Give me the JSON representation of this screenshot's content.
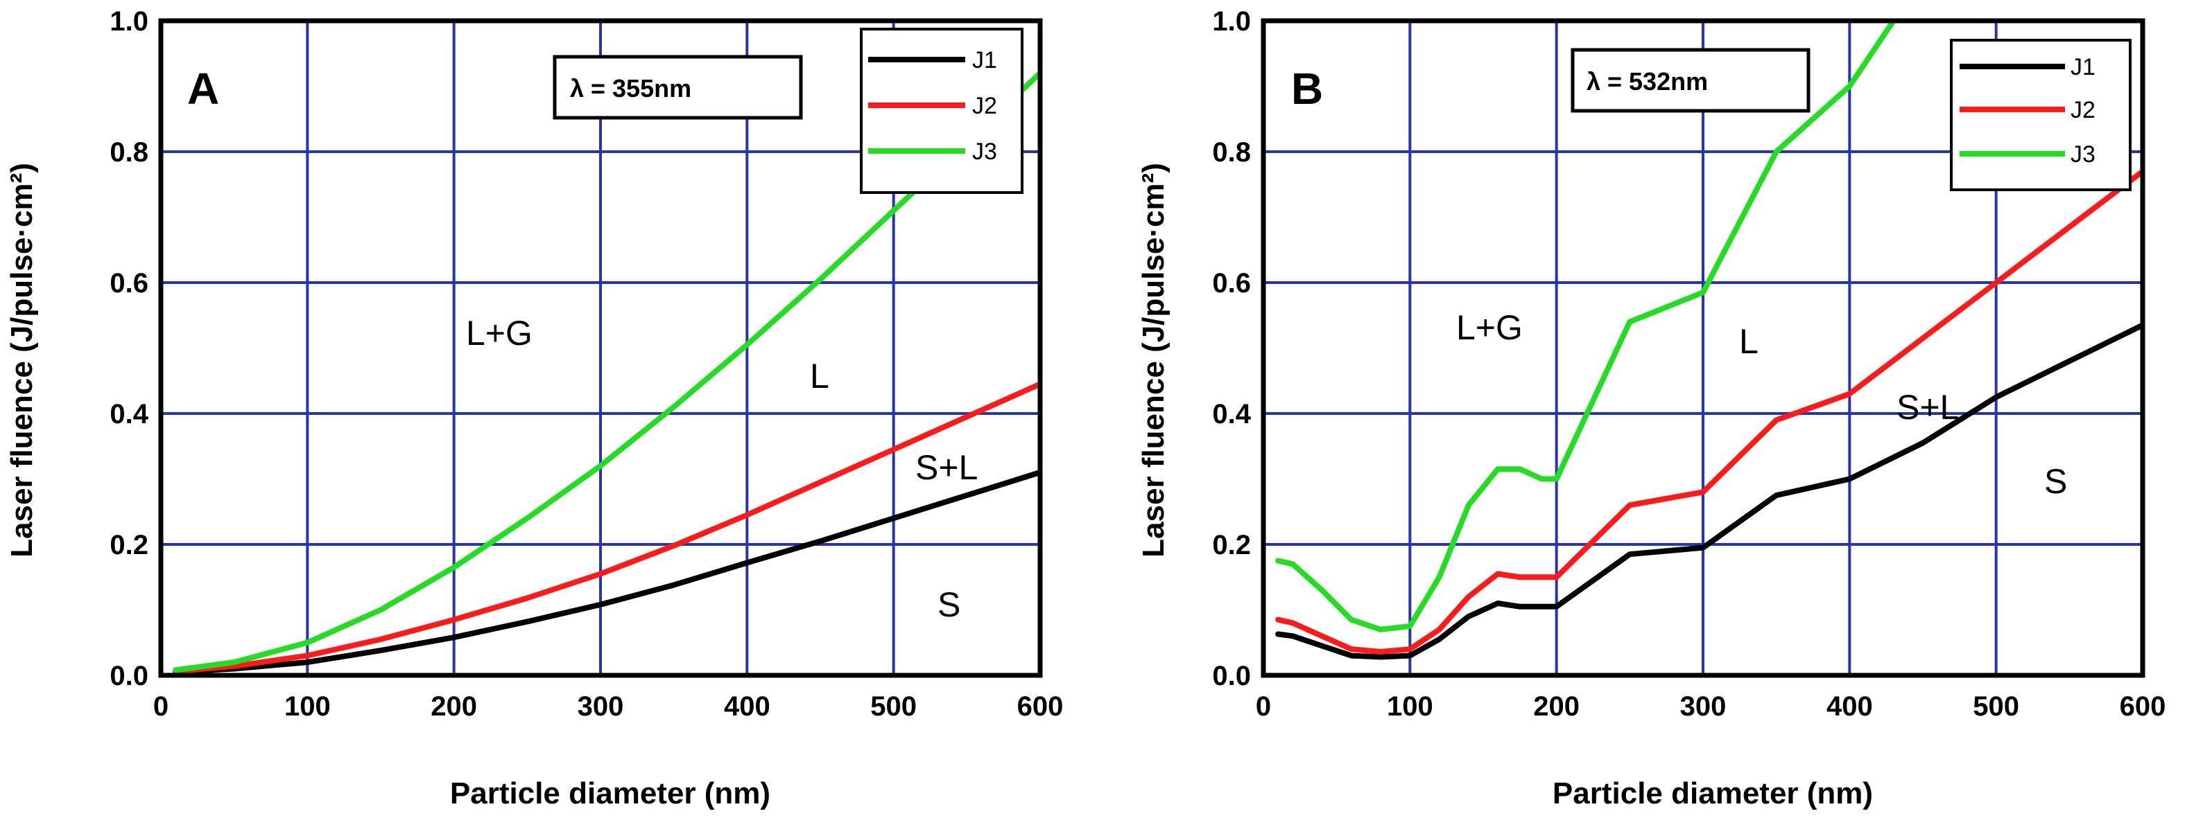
{
  "colors": {
    "grid": "#2633b8",
    "J1": "#000000",
    "J2": "#ff1a1a",
    "J3": "#22dd22"
  },
  "chart_data": [
    {
      "type": "line",
      "panel": "A",
      "wavelength_label": "= 355nm",
      "wavelength_symbol": "λ",
      "xlabel": "Particle diameter (nm)",
      "ylabel": "Laser fluence (J/pulse·cm²)",
      "xlim": [
        0,
        600
      ],
      "ylim": [
        0,
        1.0
      ],
      "xticks": [
        0,
        100,
        200,
        300,
        400,
        500,
        600
      ],
      "yticks": [
        0.0,
        0.2,
        0.4,
        0.6,
        0.8,
        1.0
      ],
      "ytick_labels": [
        "0.0",
        "0.2",
        "0.4",
        "0.6",
        "0.8",
        "1.0"
      ],
      "grid": true,
      "legend": "top-right",
      "region_labels": [
        "L+G",
        "L",
        "S+L",
        "S"
      ],
      "series": [
        {
          "name": "J1",
          "x": [
            10,
            50,
            100,
            150,
            200,
            250,
            300,
            350,
            400,
            450,
            500,
            550,
            600
          ],
          "y": [
            0.005,
            0.01,
            0.02,
            0.038,
            0.058,
            0.082,
            0.108,
            0.138,
            0.172,
            0.205,
            0.24,
            0.275,
            0.31
          ]
        },
        {
          "name": "J2",
          "x": [
            10,
            50,
            100,
            150,
            200,
            250,
            300,
            350,
            400,
            450,
            500,
            550,
            600
          ],
          "y": [
            0.006,
            0.014,
            0.03,
            0.055,
            0.085,
            0.118,
            0.155,
            0.198,
            0.245,
            0.295,
            0.345,
            0.395,
            0.445
          ]
        },
        {
          "name": "J3",
          "x": [
            10,
            50,
            100,
            150,
            200,
            250,
            300,
            350,
            400,
            450,
            500,
            550,
            600
          ],
          "y": [
            0.008,
            0.02,
            0.05,
            0.1,
            0.165,
            0.24,
            0.32,
            0.41,
            0.505,
            0.605,
            0.71,
            0.815,
            0.92
          ]
        }
      ]
    },
    {
      "type": "line",
      "panel": "B",
      "wavelength_label": "= 532nm",
      "wavelength_symbol": "λ",
      "xlabel": "Particle diameter (nm)",
      "ylabel": "Laser fluence (J/pulse·cm²)",
      "xlim": [
        0,
        600
      ],
      "ylim": [
        0,
        1.0
      ],
      "xticks": [
        0,
        100,
        200,
        300,
        400,
        500,
        600
      ],
      "yticks": [
        0.0,
        0.2,
        0.4,
        0.6,
        0.8,
        1.0
      ],
      "ytick_labels": [
        "0.0",
        "0.2",
        "0.4",
        "0.6",
        "0.8",
        "1.0"
      ],
      "grid": true,
      "legend": "top-right",
      "region_labels": [
        "L+G",
        "L",
        "S+L",
        "S"
      ],
      "series": [
        {
          "name": "J1",
          "x": [
            10,
            20,
            40,
            60,
            80,
            100,
            120,
            140,
            160,
            175,
            200,
            250,
            300,
            350,
            400,
            450,
            500,
            550,
            600
          ],
          "y": [
            0.063,
            0.06,
            0.045,
            0.03,
            0.028,
            0.03,
            0.055,
            0.09,
            0.11,
            0.105,
            0.105,
            0.185,
            0.195,
            0.275,
            0.3,
            0.355,
            0.425,
            0.48,
            0.535
          ]
        },
        {
          "name": "J2",
          "x": [
            10,
            20,
            40,
            60,
            80,
            100,
            120,
            140,
            160,
            175,
            200,
            250,
            300,
            350,
            400,
            450,
            500,
            550,
            600
          ],
          "y": [
            0.085,
            0.08,
            0.06,
            0.04,
            0.036,
            0.04,
            0.07,
            0.12,
            0.155,
            0.15,
            0.15,
            0.26,
            0.28,
            0.39,
            0.43,
            0.515,
            0.6,
            0.685,
            0.77
          ]
        },
        {
          "name": "J3",
          "x": [
            10,
            20,
            40,
            60,
            80,
            100,
            120,
            140,
            160,
            175,
            190,
            200,
            250,
            300,
            350,
            400,
            430
          ],
          "y": [
            0.175,
            0.17,
            0.13,
            0.085,
            0.07,
            0.075,
            0.15,
            0.26,
            0.315,
            0.315,
            0.3,
            0.3,
            0.54,
            0.585,
            0.8,
            0.9,
            1.0
          ]
        }
      ]
    }
  ]
}
